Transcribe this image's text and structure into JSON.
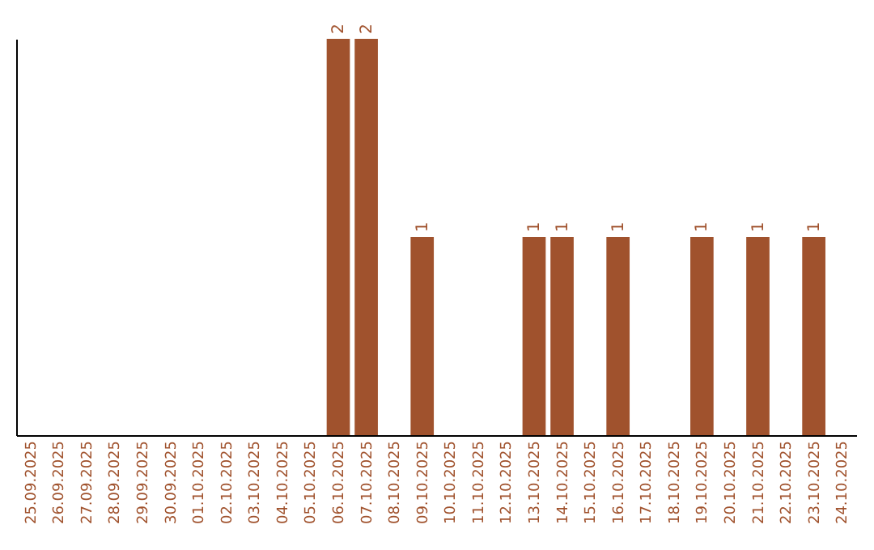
{
  "chart_data": {
    "type": "bar",
    "categories": [
      "25.09.2025",
      "26.09.2025",
      "27.09.2025",
      "28.09.2025",
      "29.09.2025",
      "30.09.2025",
      "01.10.2025",
      "02.10.2025",
      "03.10.2025",
      "04.10.2025",
      "05.10.2025",
      "06.10.2025",
      "07.10.2025",
      "08.10.2025",
      "09.10.2025",
      "10.10.2025",
      "11.10.2025",
      "12.10.2025",
      "13.10.2025",
      "14.10.2025",
      "15.10.2025",
      "16.10.2025",
      "17.10.2025",
      "18.10.2025",
      "19.10.2025",
      "20.10.2025",
      "21.10.2025",
      "22.10.2025",
      "23.10.2025",
      "24.10.2025"
    ],
    "values": [
      0,
      0,
      0,
      0,
      0,
      0,
      0,
      0,
      0,
      0,
      0,
      2,
      2,
      0,
      1,
      0,
      0,
      0,
      1,
      1,
      0,
      1,
      0,
      0,
      1,
      0,
      1,
      0,
      1,
      0
    ],
    "value_labels": [
      null,
      null,
      null,
      null,
      null,
      null,
      null,
      null,
      null,
      null,
      null,
      "2",
      "2",
      null,
      "1",
      null,
      null,
      null,
      "1",
      "1",
      null,
      "1",
      null,
      null,
      "1",
      null,
      "1",
      null,
      "1",
      null
    ],
    "color": "#a0522d",
    "grid": false
  }
}
